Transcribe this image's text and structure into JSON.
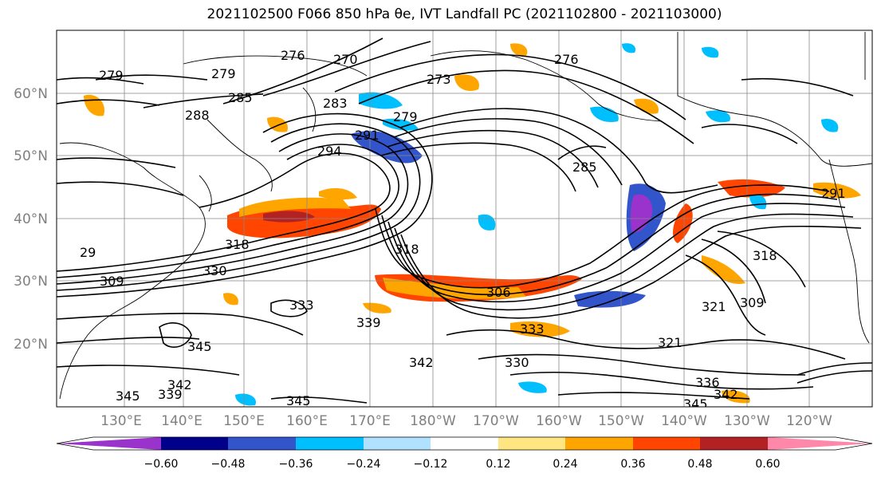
{
  "title": "2021102500 F066 850 hPa θe, IVT Landfall PC (2021102800 - 2021103000)",
  "lat_labels": [
    "60°N",
    "50°N",
    "40°N",
    "30°N",
    "20°N"
  ],
  "lon_labels": [
    "130°E",
    "140°E",
    "150°E",
    "160°E",
    "170°E",
    "180°W",
    "170°W",
    "160°W",
    "150°W",
    "140°W",
    "130°W",
    "120°W"
  ],
  "contour_labels": [
    "279",
    "279",
    "276",
    "270",
    "276",
    "273",
    "288",
    "285",
    "283",
    "279",
    "291",
    "294",
    "285",
    "291",
    "318",
    "318",
    "309",
    "330",
    "333",
    "339",
    "345",
    "333",
    "330",
    "342",
    "321",
    "309",
    "321",
    "336",
    "342",
    "345",
    "345",
    "339",
    "345",
    "342",
    "29",
    "318",
    "306"
  ],
  "colorbar": {
    "tick_labels": [
      "−0.60",
      "−0.48",
      "−0.36",
      "−0.24",
      "−0.12",
      "0.12",
      "0.24",
      "0.36",
      "0.48",
      "0.60"
    ],
    "colors": [
      "#9933cc",
      "#00008b",
      "#3355cc",
      "#00bfff",
      "#b0e2ff",
      "#ffffff",
      "#ffe680",
      "#ffa500",
      "#ff4500",
      "#b22222",
      "#ff88aa"
    ]
  }
}
